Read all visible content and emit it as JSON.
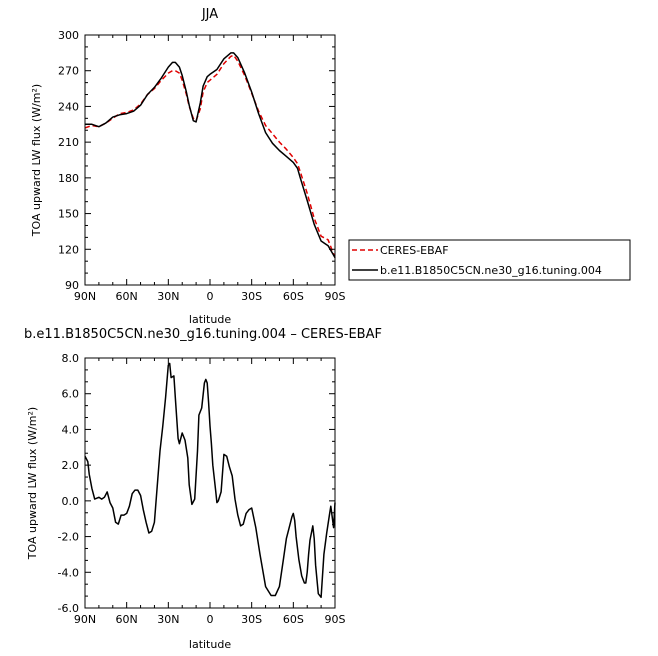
{
  "chart_data": [
    {
      "type": "line",
      "title": "JJA",
      "xlabel": "latitude",
      "ylabel": "TOA upward LW flux (W/m²)",
      "x_ticks": [
        "90N",
        "60N",
        "30N",
        "0",
        "30S",
        "60S",
        "90S"
      ],
      "y_ticks": [
        "90",
        "120",
        "150",
        "180",
        "210",
        "240",
        "270",
        "300"
      ],
      "xlim": [
        90,
        -90
      ],
      "ylim": [
        90,
        300
      ],
      "grid": false,
      "legend_position": "outside-right",
      "colors": {
        "CERES-EBAF": "#e00000",
        "b.e11.B1850C5CN.ne30_g16.tuning.004": "#000000"
      },
      "series": [
        {
          "name": "CERES-EBAF",
          "style": "dashed",
          "x": [
            90,
            85,
            80,
            75,
            70,
            65,
            60,
            55,
            50,
            45,
            40,
            35,
            30,
            27,
            25,
            22,
            20,
            17,
            15,
            12,
            10,
            7,
            5,
            2,
            0,
            -5,
            -10,
            -15,
            -17,
            -20,
            -25,
            -30,
            -35,
            -40,
            -45,
            -50,
            -55,
            -60,
            -63,
            -65,
            -70,
            -75,
            -80,
            -85,
            -90
          ],
          "y": [
            222,
            224,
            223,
            226,
            230,
            234,
            235,
            237,
            242,
            250,
            255,
            262,
            268,
            270,
            270,
            268,
            262,
            250,
            240,
            230,
            228,
            238,
            252,
            260,
            262,
            267,
            276,
            282,
            283,
            278,
            266,
            251,
            236,
            224,
            217,
            210,
            204,
            197,
            192,
            185,
            167,
            146,
            131,
            128,
            113
          ]
        },
        {
          "name": "b.e11.B1850C5CN.ne30_g16.tuning.004",
          "style": "solid",
          "x": [
            90,
            85,
            80,
            75,
            70,
            65,
            60,
            55,
            50,
            45,
            40,
            35,
            30,
            27,
            25,
            22,
            20,
            17,
            15,
            12,
            10,
            7,
            5,
            2,
            0,
            -5,
            -10,
            -15,
            -17,
            -20,
            -25,
            -30,
            -35,
            -40,
            -45,
            -50,
            -55,
            -60,
            -63,
            -65,
            -70,
            -75,
            -80,
            -85,
            -90
          ],
          "y": [
            225,
            225,
            223,
            226,
            231,
            233,
            234,
            236,
            241,
            250,
            256,
            264,
            273,
            277,
            277,
            273,
            266,
            252,
            241,
            228,
            227,
            243,
            257,
            265,
            267,
            271,
            280,
            285,
            285,
            281,
            268,
            252,
            234,
            218,
            209,
            203,
            198,
            193,
            188,
            180,
            161,
            141,
            127,
            123,
            113
          ]
        }
      ]
    },
    {
      "type": "line",
      "title": "b.e11.B1850C5CN.ne30_g16.tuning.004 – CERES-EBAF",
      "xlabel": "latitude",
      "ylabel": "TOA upward LW flux (W/m²)",
      "x_ticks": [
        "90N",
        "60N",
        "30N",
        "0",
        "30S",
        "60S",
        "90S"
      ],
      "y_ticks": [
        "-6.0",
        "-4.0",
        "-2.0",
        "0.0",
        "2.0",
        "4.0",
        "6.0",
        "8.0"
      ],
      "xlim": [
        90,
        -90
      ],
      "ylim": [
        -6,
        8
      ],
      "grid": false,
      "colors": {
        "difference": "#000000"
      },
      "series": [
        {
          "style": "solid",
          "x": [
            90,
            88,
            87,
            85,
            83,
            80,
            78,
            76,
            74,
            72,
            70,
            68,
            66,
            64,
            62,
            60,
            58,
            56,
            54,
            52,
            50,
            48,
            46,
            44,
            42,
            40,
            38,
            36,
            34,
            32,
            30,
            29,
            28,
            26,
            25,
            23,
            22,
            20,
            18,
            16,
            15,
            13,
            11,
            9,
            8,
            6,
            4,
            3,
            2,
            1,
            0,
            -1,
            -2,
            -4,
            -5,
            -6,
            -8,
            -10,
            -12,
            -14,
            -16,
            -18,
            -20,
            -22,
            -24,
            -26,
            -28,
            -30,
            -33,
            -36,
            -40,
            -44,
            -47,
            -50,
            -53,
            -55,
            -57,
            -59,
            -60,
            -61,
            -62,
            -64,
            -66,
            -68,
            -69,
            -70,
            -71,
            -72,
            -74,
            -75,
            -76,
            -78,
            -80,
            -82,
            -84,
            -86,
            -87,
            -88,
            -89,
            -90
          ],
          "y": [
            2.5,
            2.2,
            1.5,
            0.7,
            0.1,
            0.2,
            0.1,
            0.2,
            0.5,
            -0.1,
            -0.4,
            -1.2,
            -1.3,
            -0.8,
            -0.8,
            -0.7,
            -0.3,
            0.4,
            0.6,
            0.6,
            0.3,
            -0.5,
            -1.2,
            -1.8,
            -1.7,
            -1.2,
            0.8,
            2.8,
            4.2,
            5.8,
            7.6,
            7.7,
            6.9,
            7.0,
            5.8,
            3.5,
            3.2,
            3.8,
            3.4,
            2.4,
            0.9,
            -0.2,
            0.1,
            2.8,
            4.8,
            5.2,
            6.6,
            6.8,
            6.6,
            5.5,
            4.2,
            3.2,
            2.0,
            0.6,
            -0.1,
            0.0,
            0.5,
            2.6,
            2.5,
            1.9,
            1.4,
            0.1,
            -0.8,
            -1.4,
            -1.3,
            -0.7,
            -0.5,
            -0.4,
            -1.5,
            -3.0,
            -4.8,
            -5.3,
            -5.3,
            -4.8,
            -3.2,
            -2.1,
            -1.5,
            -0.9,
            -0.7,
            -1.1,
            -2.0,
            -3.3,
            -4.2,
            -4.6,
            -4.6,
            -4.0,
            -3.0,
            -2.2,
            -1.4,
            -2.1,
            -3.6,
            -5.2,
            -5.4,
            -3.0,
            -1.8,
            -0.8,
            -0.3,
            -0.9,
            -1.5,
            -0.1
          ]
        }
      ]
    }
  ]
}
